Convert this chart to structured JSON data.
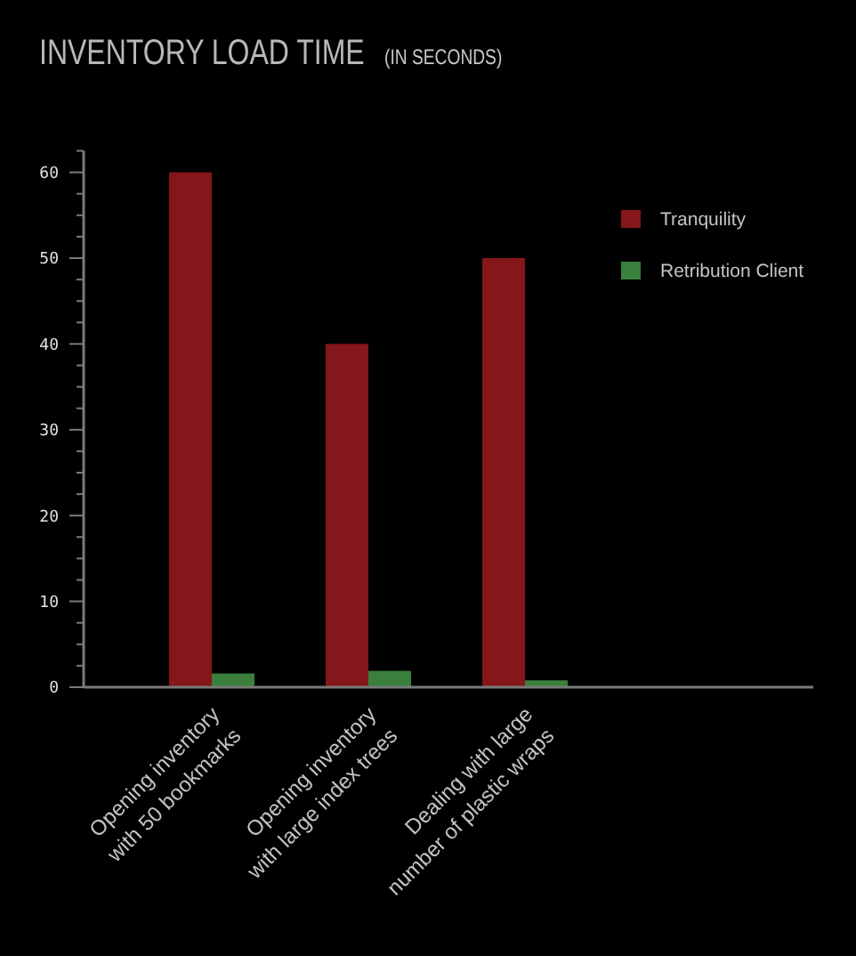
{
  "chart_data": {
    "type": "bar",
    "title": "INVENTORY LOAD TIME",
    "subtitle": "(IN SECONDS)",
    "categories": [
      "Opening inventory\nwith 50 bookmarks",
      "Opening inventory\nwith large index trees",
      "Dealing with large\nnumber of plastic wraps"
    ],
    "series": [
      {
        "name": "Tranquility",
        "color": "#85171b",
        "values": [
          60,
          40,
          50
        ]
      },
      {
        "name": "Retribution Client",
        "color": "#3a803c",
        "values": [
          1.6,
          1.9,
          0.8
        ]
      }
    ],
    "ylim": [
      0,
      62.5
    ],
    "yticks": [
      0,
      {
        "value": 2.5,
        "label": null
      },
      {
        "value": 5,
        "label": null
      },
      {
        "value": 7.5,
        "label": null
      },
      10,
      {
        "value": 12.5,
        "label": null
      },
      {
        "value": 15,
        "label": null
      },
      {
        "value": 17.5,
        "label": null
      },
      20,
      {
        "value": 22.5,
        "label": null
      },
      {
        "value": 25,
        "label": null
      },
      {
        "value": 27.5,
        "label": null
      },
      30,
      {
        "value": 32.5,
        "label": null
      },
      {
        "value": 35,
        "label": null
      },
      {
        "value": 37.5,
        "label": null
      },
      40,
      {
        "value": 42.5,
        "label": null
      },
      {
        "value": 45,
        "label": null
      },
      {
        "value": 47.5,
        "label": null
      },
      50,
      {
        "value": 52.5,
        "label": null
      },
      {
        "value": 55,
        "label": null
      },
      {
        "value": 57.5,
        "label": null
      },
      60,
      {
        "value": 62.5,
        "label": null
      }
    ],
    "legend": "top right"
  }
}
